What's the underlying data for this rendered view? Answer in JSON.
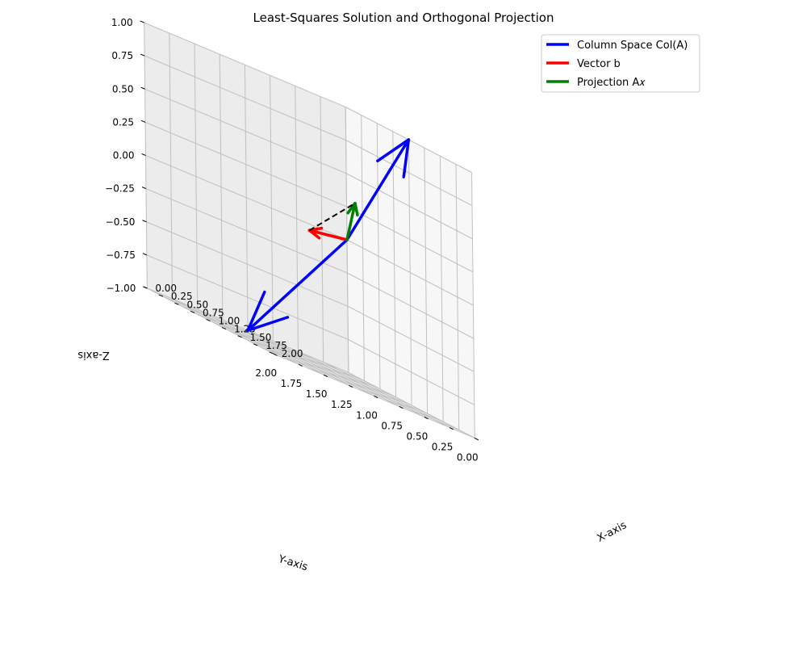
{
  "chart_data": {
    "type": "3d-vector",
    "title": "Least-Squares Solution and Orthogonal Projection",
    "xlabel": "X-axis",
    "ylabel": "Y-axis",
    "zlabel": "Z-axis",
    "xlim": [
      0,
      2
    ],
    "ylim": [
      0,
      2
    ],
    "zlim": [
      -1,
      1
    ],
    "xticks": [
      "0.00",
      "0.25",
      "0.50",
      "0.75",
      "1.00",
      "1.25",
      "1.50",
      "1.75",
      "2.00"
    ],
    "yticks": [
      "0.00",
      "0.25",
      "0.50",
      "0.75",
      "1.00",
      "1.25",
      "1.50",
      "1.75",
      "2.00"
    ],
    "zticks": [
      "−1.00",
      "−0.75",
      "−0.50",
      "−0.25",
      "0.00",
      "0.25",
      "0.50",
      "0.75",
      "1.00"
    ],
    "grid": true,
    "legend_position": "top-right",
    "series": [
      {
        "name": "Column Space Col(A)",
        "color": "#0000ff",
        "kind": "arrow",
        "from": [
          0,
          0,
          0
        ],
        "to": [
          1,
          0,
          1
        ]
      },
      {
        "name": "",
        "color": "#0000ff",
        "kind": "arrow",
        "from": [
          0,
          0,
          0
        ],
        "to": [
          0,
          1,
          -1
        ]
      },
      {
        "name": "Vector b",
        "color": "#ff0000",
        "kind": "arrow",
        "from": [
          0,
          0,
          0
        ],
        "to": [
          1,
          1,
          0
        ]
      },
      {
        "name": "Projection A𝑥",
        "color": "#008000",
        "kind": "arrow",
        "from": [
          0,
          0,
          0
        ],
        "to": [
          0.6667,
          0.3333,
          0.3333
        ]
      },
      {
        "name": "",
        "color": "#000000",
        "kind": "dashed",
        "from": [
          1,
          1,
          0
        ],
        "to": [
          0.6667,
          0.3333,
          0.3333
        ]
      }
    ],
    "legend": [
      {
        "label": "Column Space Col(A)",
        "color": "#0000ff"
      },
      {
        "label": "Vector b",
        "color": "#ff0000"
      },
      {
        "label": "Projection A𝑥",
        "color": "#008000"
      }
    ]
  }
}
